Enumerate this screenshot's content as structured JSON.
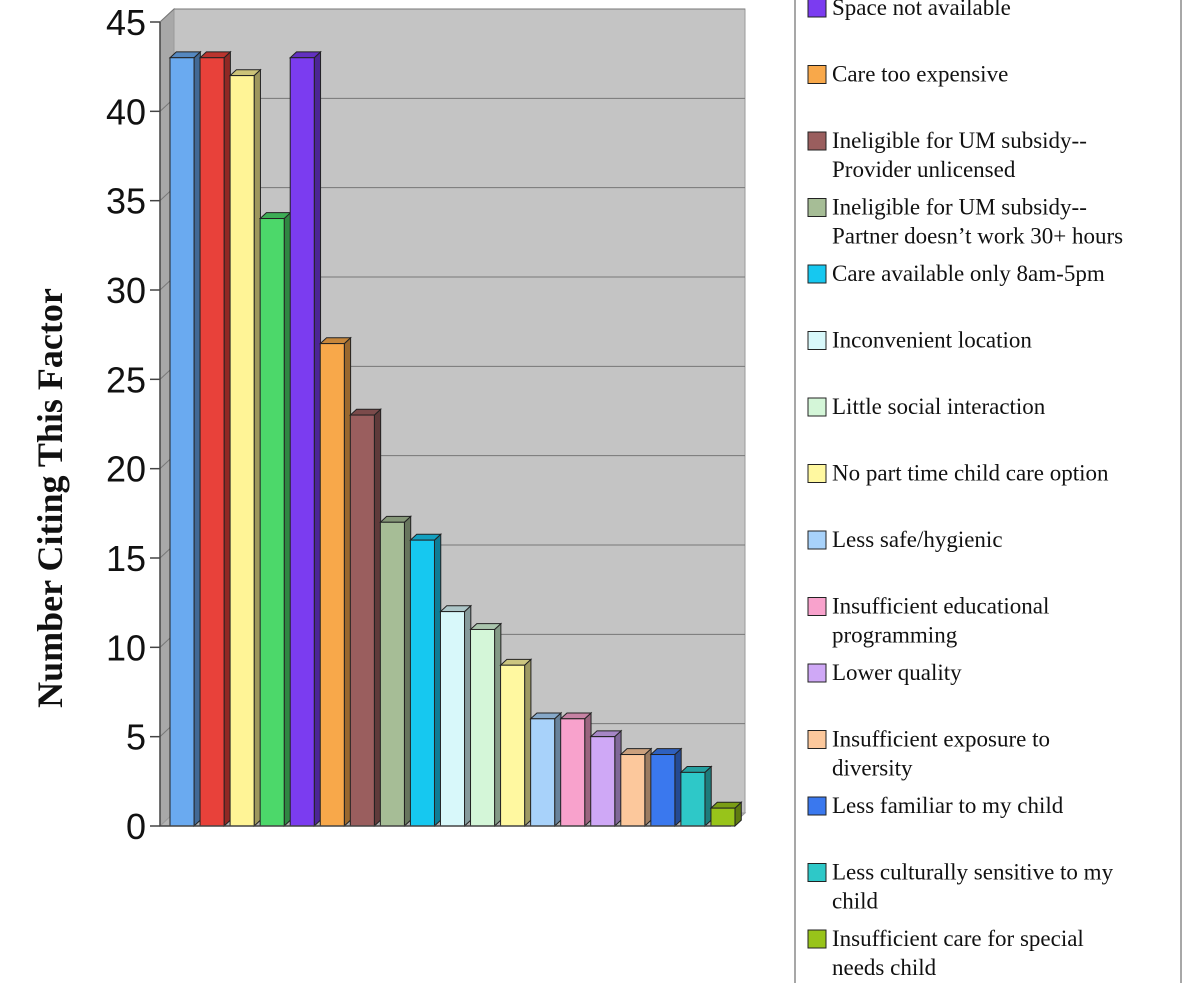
{
  "chart_data": {
    "type": "bar",
    "ylabel": "Number Citing This Factor",
    "ylim": [
      0,
      45
    ],
    "y_ticks": [
      "0",
      "5",
      "10",
      "15",
      "20",
      "25",
      "30",
      "35",
      "40",
      "45"
    ],
    "grid": true,
    "legend_position": "right",
    "series": [
      {
        "name": "Space not available",
        "values": [
          43
        ],
        "color": "#7b3cf0"
      },
      {
        "name": "Care too expensive",
        "values": [
          27
        ],
        "color": "#f8a84a"
      },
      {
        "name": "Ineligible for UM subsidy--Provider unlicensed",
        "values": [
          23
        ],
        "color": "#9a5e5e"
      },
      {
        "name": "Ineligible for UM subsidy--Partner doesn’t work 30+ hours",
        "values": [
          17
        ],
        "color": "#a6bd96"
      },
      {
        "name": "Care available only 8am-5pm",
        "values": [
          16
        ],
        "color": "#16c8f0"
      },
      {
        "name": "Inconvenient location",
        "values": [
          12
        ],
        "color": "#d8f8fa"
      },
      {
        "name": "Little social interaction",
        "values": [
          11
        ],
        "color": "#d4f6d8"
      },
      {
        "name": "No part time child care option",
        "values": [
          9
        ],
        "color": "#fff8a0"
      },
      {
        "name": "Less safe/hygienic",
        "values": [
          6
        ],
        "color": "#a8d2fa"
      },
      {
        "name": "Insufficient educational programming",
        "values": [
          6
        ],
        "color": "#f8a2cc"
      },
      {
        "name": "Lower quality",
        "values": [
          5
        ],
        "color": "#cfa8f6"
      },
      {
        "name": "Insufficient exposure to diversity",
        "values": [
          4
        ],
        "color": "#fcc89c"
      },
      {
        "name": "Less familiar to my child",
        "values": [
          4
        ],
        "color": "#3a78ee"
      },
      {
        "name": "Less culturally sensitive to my child",
        "values": [
          3
        ],
        "color": "#2ec8c8"
      },
      {
        "name": "Insufficient care for special needs child",
        "values": [
          1
        ],
        "color": "#98c41a"
      }
    ],
    "unlabeled_bars": [
      {
        "value": 43,
        "color": "#6aaaf0"
      },
      {
        "value": 43,
        "color": "#e8413a"
      },
      {
        "value": 42,
        "color": "#fff496"
      },
      {
        "value": 34,
        "color": "#4cd86a"
      }
    ]
  }
}
